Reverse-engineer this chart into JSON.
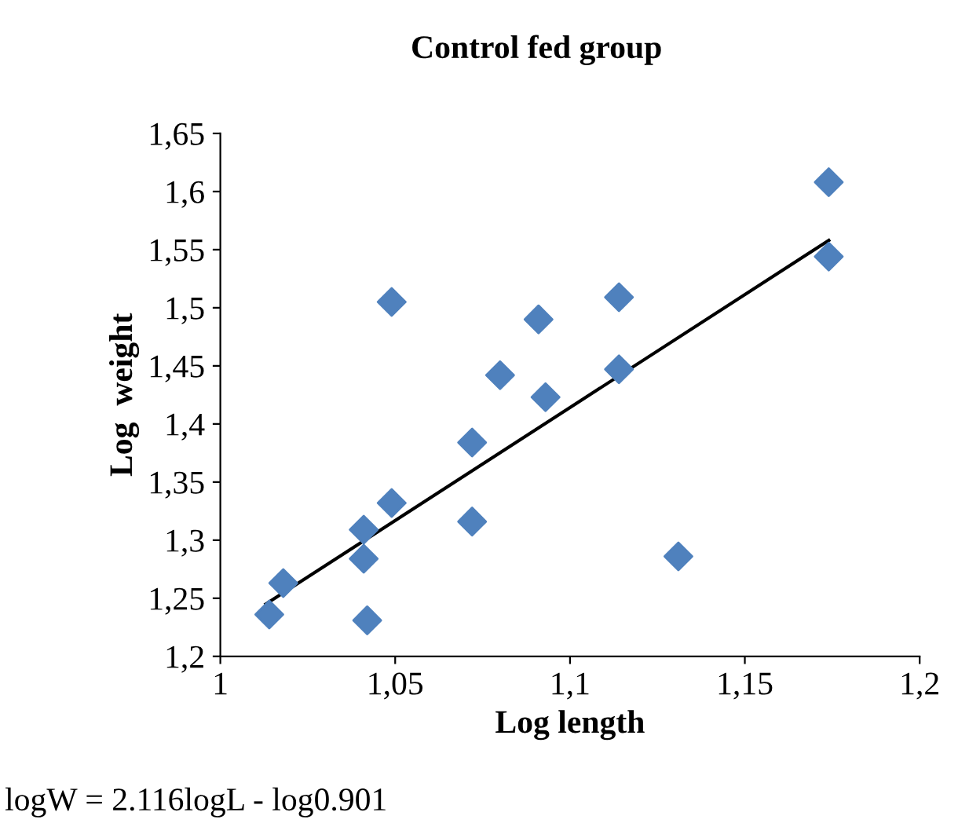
{
  "chart_data": {
    "type": "scatter",
    "title": "Control fed group",
    "xlabel": "Log length",
    "ylabel": "Log  weight",
    "xlim": [
      1,
      1.2
    ],
    "ylim": [
      1.2,
      1.65
    ],
    "xticks": [
      {
        "value": 1,
        "label": "1"
      },
      {
        "value": 1.05,
        "label": "1,05"
      },
      {
        "value": 1.1,
        "label": "1,1"
      },
      {
        "value": 1.15,
        "label": "1,15"
      },
      {
        "value": 1.2,
        "label": "1,2"
      }
    ],
    "yticks": [
      {
        "value": 1.2,
        "label": "1,2"
      },
      {
        "value": 1.25,
        "label": "1,25"
      },
      {
        "value": 1.3,
        "label": "1,3"
      },
      {
        "value": 1.35,
        "label": "1,35"
      },
      {
        "value": 1.4,
        "label": "1,4"
      },
      {
        "value": 1.45,
        "label": "1,45"
      },
      {
        "value": 1.5,
        "label": "1,5"
      },
      {
        "value": 1.55,
        "label": "1,55"
      },
      {
        "value": 1.6,
        "label": "1,6"
      },
      {
        "value": 1.65,
        "label": "1,65"
      }
    ],
    "grid": false,
    "legend": false,
    "annotations": [
      "logW = 2.116logL - log0.901"
    ],
    "series": [
      {
        "marker": "diamond",
        "color": "#4f81bd",
        "x": [
          1.014,
          1.018,
          1.041,
          1.041,
          1.042,
          1.049,
          1.049,
          1.072,
          1.072,
          1.08,
          1.091,
          1.093,
          1.114,
          1.114,
          1.131,
          1.174,
          1.174
        ],
        "values": [
          1.236,
          1.263,
          1.309,
          1.284,
          1.231,
          1.505,
          1.332,
          1.384,
          1.316,
          1.442,
          1.49,
          1.423,
          1.509,
          1.447,
          1.286,
          1.608,
          1.544
        ]
      },
      {
        "type": "line",
        "marker": "none",
        "color": "#000000",
        "x": [
          1.013,
          1.174
        ],
        "values": [
          1.245,
          1.558
        ]
      }
    ]
  }
}
